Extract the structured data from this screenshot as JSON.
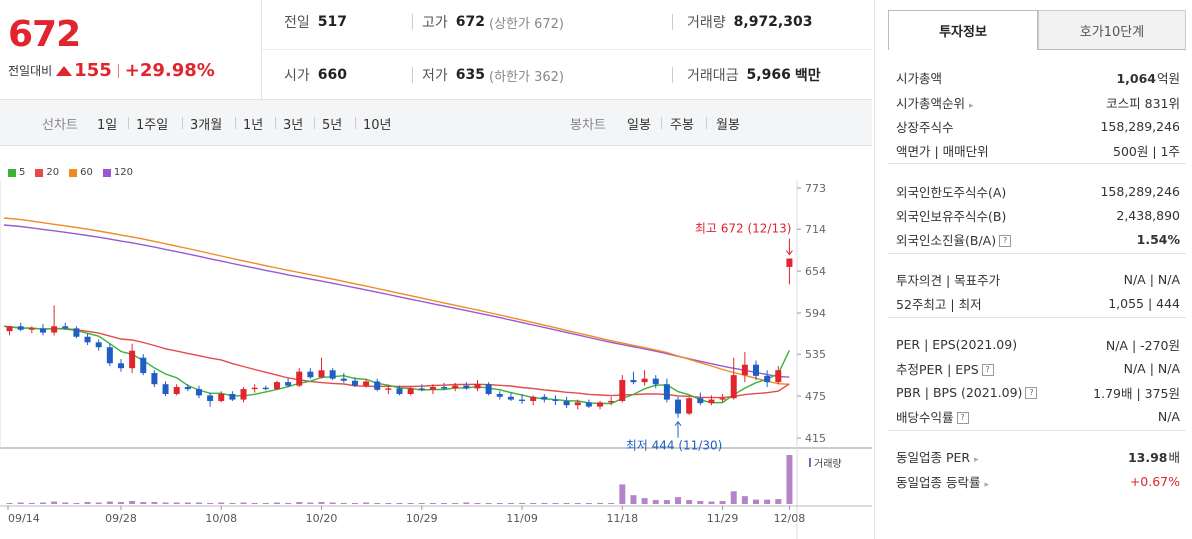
{
  "price": {
    "current": "672",
    "change_label": "전일대비",
    "change_amount": "155",
    "change_pct": "+29.98%"
  },
  "stats": {
    "prev_close": {
      "label": "전일",
      "value": "517"
    },
    "high": {
      "label": "고가",
      "value": "672",
      "sub": "(상한가 672)"
    },
    "volume": {
      "label": "거래량",
      "value": "8,972,303"
    },
    "open": {
      "label": "시가",
      "value": "660"
    },
    "low": {
      "label": "저가",
      "value": "635",
      "sub": "(하한가 362)"
    },
    "amount": {
      "label": "거래대금",
      "value": "5,966",
      "unit": "백만"
    }
  },
  "period_bar": {
    "line_label": "선차트",
    "line_periods": [
      "1일",
      "1주일",
      "3개월",
      "1년",
      "3년",
      "5년",
      "10년"
    ],
    "candle_label": "봉차트",
    "candle_periods": [
      "일봉",
      "주봉",
      "월봉"
    ],
    "candle_active": "일봉"
  },
  "chart_data": {
    "type": "candlestick",
    "ma_legend": [
      {
        "name": "5",
        "color": "#3bb33b"
      },
      {
        "name": "20",
        "color": "#e54b4b"
      },
      {
        "name": "60",
        "color": "#f08a24"
      },
      {
        "name": "120",
        "color": "#9b59d0"
      }
    ],
    "y_ticks": [
      773,
      714,
      654,
      594,
      535,
      475,
      415
    ],
    "ylim": [
      415,
      773
    ],
    "x_labels": [
      "09/14",
      "09/28",
      "10/08",
      "10/20",
      "10/29",
      "11/09",
      "11/18",
      "11/29",
      "12/08"
    ],
    "high_annotation": "최고 672 (12/13)",
    "low_annotation": "최저 444 (11/30)",
    "volume_label": "거래량",
    "candles": [
      [
        568,
        575,
        562,
        575
      ],
      [
        575,
        580,
        568,
        570
      ],
      [
        570,
        575,
        565,
        572
      ],
      [
        572,
        578,
        562,
        566
      ],
      [
        566,
        605,
        562,
        575
      ],
      [
        575,
        580,
        570,
        572
      ],
      [
        572,
        575,
        558,
        560
      ],
      [
        560,
        565,
        548,
        552
      ],
      [
        552,
        556,
        540,
        545
      ],
      [
        545,
        550,
        518,
        522
      ],
      [
        522,
        528,
        510,
        515
      ],
      [
        515,
        550,
        508,
        540
      ],
      [
        530,
        535,
        505,
        508
      ],
      [
        508,
        512,
        488,
        492
      ],
      [
        492,
        496,
        475,
        478
      ],
      [
        478,
        492,
        476,
        488
      ],
      [
        488,
        492,
        482,
        485
      ],
      [
        485,
        490,
        472,
        476
      ],
      [
        476,
        480,
        460,
        468
      ],
      [
        468,
        482,
        466,
        478
      ],
      [
        478,
        482,
        468,
        470
      ],
      [
        470,
        488,
        466,
        485
      ],
      [
        485,
        492,
        480,
        487
      ],
      [
        487,
        490,
        483,
        485
      ],
      [
        485,
        497,
        484,
        495
      ],
      [
        495,
        500,
        488,
        490
      ],
      [
        490,
        515,
        488,
        510
      ],
      [
        510,
        515,
        500,
        502
      ],
      [
        502,
        530,
        500,
        512
      ],
      [
        512,
        515,
        498,
        500
      ],
      [
        500,
        508,
        494,
        497
      ],
      [
        497,
        502,
        488,
        490
      ],
      [
        490,
        500,
        487,
        496
      ],
      [
        496,
        500,
        482,
        484
      ],
      [
        484,
        490,
        478,
        486
      ],
      [
        486,
        490,
        476,
        478
      ],
      [
        478,
        488,
        476,
        486
      ],
      [
        486,
        492,
        482,
        484
      ],
      [
        484,
        492,
        478,
        488
      ],
      [
        488,
        494,
        484,
        486
      ],
      [
        486,
        494,
        482,
        490
      ],
      [
        490,
        495,
        484,
        486
      ],
      [
        486,
        498,
        482,
        492
      ],
      [
        492,
        495,
        476,
        478
      ],
      [
        478,
        482,
        470,
        474
      ],
      [
        474,
        480,
        468,
        470
      ],
      [
        470,
        478,
        464,
        468
      ],
      [
        468,
        476,
        462,
        474
      ],
      [
        474,
        478,
        466,
        470
      ],
      [
        470,
        476,
        462,
        468
      ],
      [
        468,
        474,
        458,
        462
      ],
      [
        462,
        470,
        456,
        466
      ],
      [
        466,
        470,
        458,
        460
      ],
      [
        460,
        468,
        456,
        466
      ],
      [
        466,
        474,
        462,
        468
      ],
      [
        468,
        505,
        466,
        498
      ],
      [
        498,
        510,
        492,
        495
      ],
      [
        495,
        512,
        490,
        500
      ],
      [
        500,
        505,
        486,
        492
      ],
      [
        492,
        500,
        466,
        470
      ],
      [
        470,
        474,
        444,
        450
      ],
      [
        450,
        474,
        448,
        472
      ],
      [
        472,
        480,
        462,
        465
      ],
      [
        465,
        476,
        462,
        470
      ],
      [
        470,
        478,
        466,
        472
      ],
      [
        472,
        530,
        470,
        505
      ],
      [
        505,
        538,
        495,
        520
      ],
      [
        520,
        526,
        498,
        504
      ],
      [
        504,
        512,
        488,
        495
      ],
      [
        495,
        518,
        492,
        512
      ],
      [
        660,
        672,
        635,
        672
      ]
    ],
    "volumes": [
      2,
      3,
      2,
      3,
      5,
      3,
      2,
      4,
      3,
      5,
      4,
      6,
      4,
      4,
      3,
      3,
      3,
      3,
      2,
      3,
      2,
      3,
      2,
      2,
      3,
      2,
      4,
      3,
      4,
      3,
      2,
      2,
      3,
      2,
      2,
      2,
      2,
      2,
      2,
      2,
      2,
      3,
      2,
      2,
      2,
      2,
      2,
      2,
      2,
      2,
      2,
      2,
      2,
      2,
      2,
      40,
      18,
      12,
      8,
      8,
      14,
      8,
      6,
      5,
      6,
      26,
      16,
      9,
      9,
      10,
      100
    ]
  },
  "right_panel": {
    "tabs": [
      "투자정보",
      "호가10단계"
    ],
    "rows": [
      {
        "k": "시가총액",
        "v": "1,064",
        "u": "억원"
      },
      {
        "k": "시가총액순위",
        "v": "코스피 831위"
      },
      {
        "k": "상장주식수",
        "v": "158,289,246"
      },
      {
        "k": "액면가 | 매매단위",
        "v": "500원 | 1주"
      },
      {
        "k": "외국인한도주식수(A)",
        "v": "158,289,246"
      },
      {
        "k": "외국인보유주식수(B)",
        "v": "2,438,890"
      },
      {
        "k": "외국인소진율(B/A)",
        "v": "1.54%"
      },
      {
        "k": "투자의견 | 목표주가",
        "v": "N/A | N/A"
      },
      {
        "k": "52주최고 | 최저",
        "v": "1,055 | 444"
      },
      {
        "k": "PER | EPS(2021.09)",
        "v": "N/A | -270원"
      },
      {
        "k": "추정PER | EPS",
        "v": "N/A | N/A"
      },
      {
        "k": "PBR | BPS (2021.09)",
        "v": "1.79배 | 375원"
      },
      {
        "k": "배당수익률",
        "v": "N/A"
      },
      {
        "k": "동일업종 PER",
        "v": "13.98",
        "u": "배"
      },
      {
        "k": "동일업종 등락률",
        "v": "+0.67%"
      }
    ]
  }
}
